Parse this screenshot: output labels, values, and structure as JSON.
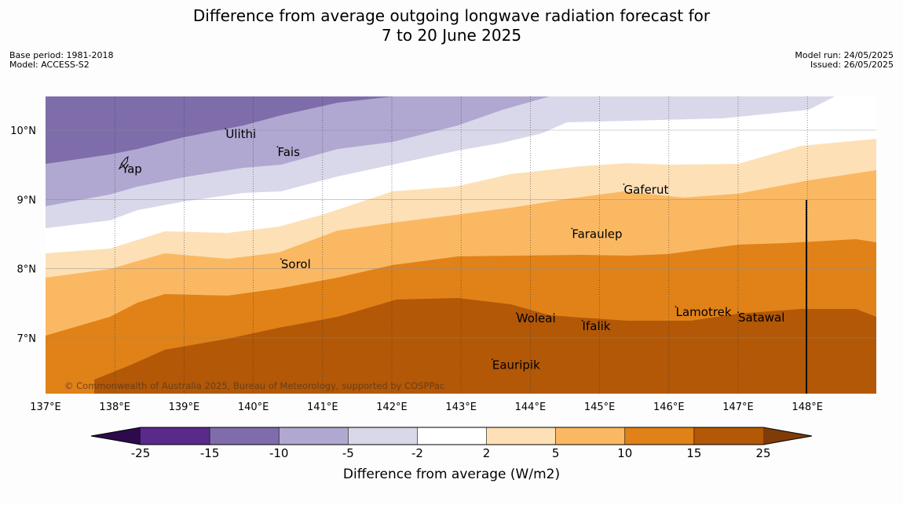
{
  "title_line1": "Difference from average outgoing longwave radiation forecast for",
  "title_line2": "7 to 20 June 2025",
  "base_period": "Base period: 1981-2018",
  "model": "Model: ACCESS-S2",
  "model_run": "Model run: 24/05/2025",
  "issued": "Issued: 26/05/2025",
  "copyright": "© Commonwealth of Australia 2025, Bureau of Meteorology, supported by COSPPac",
  "x_ticks": [
    "137°E",
    "138°E",
    "139°E",
    "140°E",
    "141°E",
    "142°E",
    "143°E",
    "144°E",
    "145°E",
    "146°E",
    "147°E",
    "148°E"
  ],
  "y_ticks": [
    "10°N",
    "9°N",
    "8°N",
    "7°N"
  ],
  "places": [
    {
      "name": "Yap",
      "lon": 138.1,
      "lat": 9.52
    },
    {
      "name": "Ulithi",
      "lon": 139.6,
      "lat": 10.02
    },
    {
      "name": "Fais",
      "lon": 140.35,
      "lat": 9.76
    },
    {
      "name": "Gaferut",
      "lon": 145.35,
      "lat": 9.22
    },
    {
      "name": "Faraulep",
      "lon": 144.6,
      "lat": 8.58
    },
    {
      "name": "Sorol",
      "lon": 140.4,
      "lat": 8.14
    },
    {
      "name": "Lamotrek",
      "lon": 146.1,
      "lat": 7.45
    },
    {
      "name": "Woleai",
      "lon": 143.8,
      "lat": 7.36
    },
    {
      "name": "Ifalik",
      "lon": 144.75,
      "lat": 7.25
    },
    {
      "name": "Satawal",
      "lon": 147.0,
      "lat": 7.37
    },
    {
      "name": "Eauripik",
      "lon": 143.45,
      "lat": 6.69
    }
  ],
  "colorbar": {
    "label": "Difference from average (W/m2)",
    "ticks": [
      "-25",
      "-15",
      "-10",
      "-5",
      "-2",
      "2",
      "5",
      "10",
      "15",
      "25"
    ],
    "colors": [
      "#5a2a8a",
      "#7e6daa",
      "#b0a8d1",
      "#d9d8ea",
      "#ffffff",
      "#fde0b6",
      "#fbb863",
      "#e08218",
      "#b35806"
    ],
    "under_color": "#2d0a4b",
    "over_color": "#7f3b08"
  },
  "colors": {
    "purple_mid": "#7e6daa",
    "purple_light": "#b0a8d1",
    "lavender": "#d9d8ea",
    "white": "#ffffff",
    "peach": "#fde0b6",
    "light_orange": "#fbb863",
    "orange": "#e08218",
    "brown": "#b35806"
  }
}
